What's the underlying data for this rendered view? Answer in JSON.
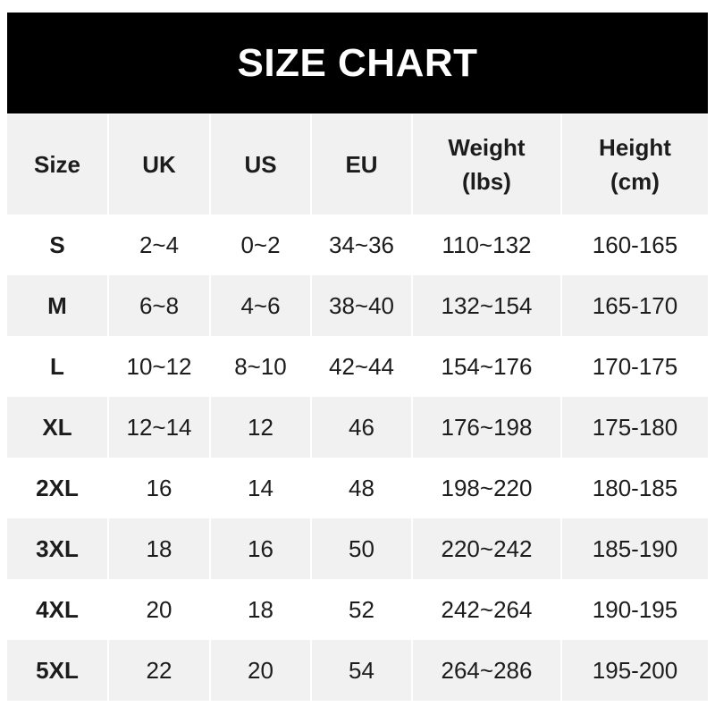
{
  "title": "SIZE CHART",
  "headers": [
    "Size",
    "UK",
    "US",
    "EU",
    "Weight\n(lbs)",
    "Height\n(cm)"
  ],
  "rows": [
    [
      "S",
      "2~4",
      "0~2",
      "34~36",
      "110~132",
      "160-165"
    ],
    [
      "M",
      "6~8",
      "4~6",
      "38~40",
      "132~154",
      "165-170"
    ],
    [
      "L",
      "10~12",
      "8~10",
      "42~44",
      "154~176",
      "170-175"
    ],
    [
      "XL",
      "12~14",
      "12",
      "46",
      "176~198",
      "175-180"
    ],
    [
      "2XL",
      "16",
      "14",
      "48",
      "198~220",
      "180-185"
    ],
    [
      "3XL",
      "18",
      "16",
      "50",
      "220~242",
      "185-190"
    ],
    [
      "4XL",
      "20",
      "18",
      "52",
      "242~264",
      "190-195"
    ],
    [
      "5XL",
      "22",
      "20",
      "54",
      "264~286",
      "195-200"
    ]
  ]
}
